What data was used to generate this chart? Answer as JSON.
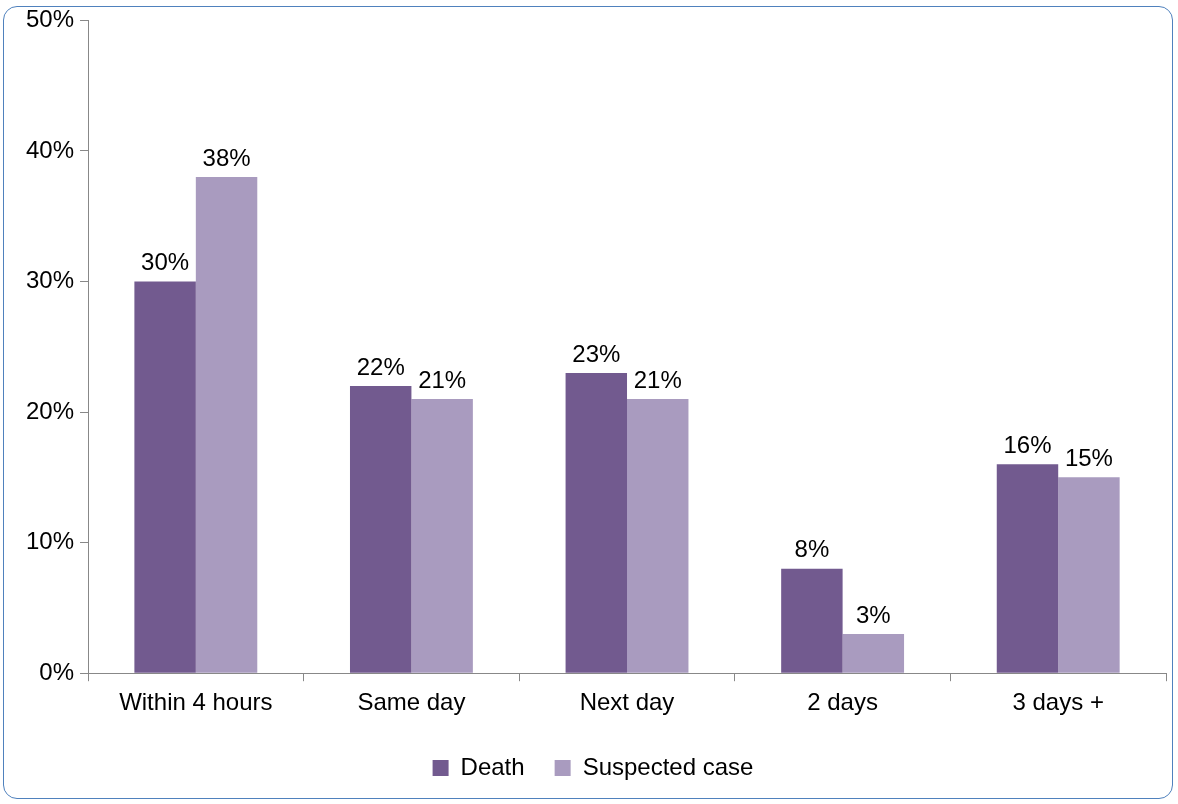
{
  "chart_data": {
    "type": "bar",
    "categories": [
      "Within 4 hours",
      "Same day",
      "Next day",
      "2 days",
      "3 days +"
    ],
    "series": [
      {
        "name": "Death",
        "color": "#725a8f",
        "values": [
          30,
          22,
          23,
          8,
          16
        ],
        "value_labels": [
          "30%",
          "22%",
          "23%",
          "8%",
          "16%"
        ]
      },
      {
        "name": "Suspected case",
        "color": "#a99bbf",
        "values": [
          38,
          21,
          21,
          3,
          15
        ],
        "value_labels": [
          "38%",
          "21%",
          "21%",
          "3%",
          "15%"
        ]
      }
    ],
    "ylim": [
      0,
      50
    ],
    "yticks": [
      {
        "value": 0,
        "label": "0%"
      },
      {
        "value": 10,
        "label": "10%"
      },
      {
        "value": 20,
        "label": "20%"
      },
      {
        "value": 30,
        "label": "30%"
      },
      {
        "value": 40,
        "label": "40%"
      },
      {
        "value": 50,
        "label": "50%"
      }
    ],
    "grid": false,
    "legend": "bottom"
  }
}
